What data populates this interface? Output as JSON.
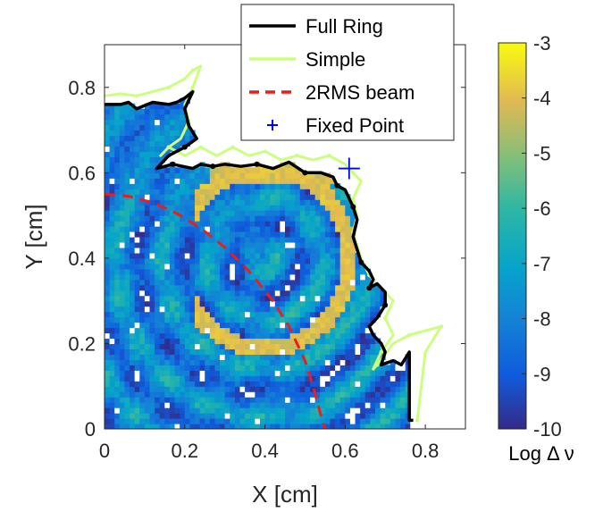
{
  "chart_data": {
    "type": "heatmap",
    "title": "",
    "xlabel": "X [cm]",
    "ylabel": "Y [cm]",
    "xlim": [
      0,
      0.9
    ],
    "ylim": [
      0,
      0.9
    ],
    "xticks": [
      "0",
      "0.2",
      "0.4",
      "0.6",
      "0.8"
    ],
    "yticks": [
      "0",
      "0.2",
      "0.4",
      "0.6",
      "0.8"
    ],
    "colorbar": {
      "label": "Log Δ ν",
      "range": [
        -10,
        -3
      ],
      "ticks": [
        "-3",
        "-4",
        "-5",
        "-6",
        "-7",
        "-8",
        "-9",
        "-10"
      ],
      "colormap": "parula"
    },
    "legend": {
      "placement": "top",
      "entries": [
        "Full Ring",
        "Simple",
        "2RMS beam",
        "Fixed Point"
      ]
    },
    "series": [
      {
        "name": "Full Ring",
        "style": "solid",
        "color": "#000000",
        "x": [
          0.0,
          0.04,
          0.06,
          0.08,
          0.12,
          0.16,
          0.18,
          0.2,
          0.22,
          0.2,
          0.21,
          0.23,
          0.2,
          0.16,
          0.13,
          0.17,
          0.22,
          0.24,
          0.27,
          0.3,
          0.34,
          0.38,
          0.42,
          0.46,
          0.5,
          0.54,
          0.57,
          0.58,
          0.6,
          0.61,
          0.62,
          0.63,
          0.62,
          0.64,
          0.66,
          0.67,
          0.66,
          0.68,
          0.7,
          0.7,
          0.68,
          0.66,
          0.67,
          0.69,
          0.7,
          0.69,
          0.72,
          0.74,
          0.76,
          0.76,
          0.77
        ],
        "y": [
          0.76,
          0.76,
          0.765,
          0.75,
          0.765,
          0.76,
          0.765,
          0.775,
          0.79,
          0.75,
          0.71,
          0.68,
          0.66,
          0.64,
          0.61,
          0.62,
          0.61,
          0.62,
          0.615,
          0.62,
          0.615,
          0.62,
          0.61,
          0.625,
          0.6,
          0.6,
          0.59,
          0.57,
          0.56,
          0.54,
          0.52,
          0.49,
          0.45,
          0.39,
          0.37,
          0.35,
          0.33,
          0.34,
          0.32,
          0.29,
          0.26,
          0.24,
          0.22,
          0.2,
          0.18,
          0.15,
          0.16,
          0.15,
          0.18,
          0.02,
          0.02
        ]
      },
      {
        "name": "Simple",
        "style": "solid",
        "color": "#ccff80",
        "x": [
          0.0,
          0.04,
          0.08,
          0.12,
          0.16,
          0.2,
          0.22,
          0.24,
          0.22,
          0.2,
          0.21,
          0.19,
          0.16,
          0.14,
          0.16,
          0.2,
          0.24,
          0.28,
          0.32,
          0.36,
          0.4,
          0.44,
          0.48,
          0.52,
          0.56,
          0.6,
          0.62,
          0.64,
          0.62,
          0.63,
          0.62,
          0.64,
          0.66,
          0.68,
          0.7,
          0.72,
          0.7,
          0.72,
          0.69,
          0.67,
          0.68,
          0.72,
          0.76,
          0.8,
          0.84,
          0.8,
          0.78
        ],
        "y": [
          0.78,
          0.785,
          0.78,
          0.79,
          0.8,
          0.82,
          0.84,
          0.85,
          0.8,
          0.76,
          0.72,
          0.68,
          0.66,
          0.64,
          0.66,
          0.64,
          0.66,
          0.64,
          0.66,
          0.64,
          0.65,
          0.63,
          0.64,
          0.63,
          0.64,
          0.62,
          0.6,
          0.58,
          0.54,
          0.5,
          0.46,
          0.4,
          0.36,
          0.34,
          0.32,
          0.3,
          0.26,
          0.22,
          0.18,
          0.14,
          0.15,
          0.2,
          0.22,
          0.23,
          0.24,
          0.18,
          0.02
        ]
      },
      {
        "name": "2RMS beam",
        "style": "dashed",
        "color": "#ee1c1c",
        "x": [
          0.0,
          0.06,
          0.12,
          0.18,
          0.24,
          0.3,
          0.36,
          0.42,
          0.46,
          0.5,
          0.52,
          0.54,
          0.55
        ],
        "y": [
          0.55,
          0.545,
          0.53,
          0.505,
          0.47,
          0.425,
          0.37,
          0.3,
          0.24,
          0.16,
          0.1,
          0.03,
          0.0
        ]
      }
    ],
    "fixed_point": {
      "name": "Fixed Point",
      "x": 0.61,
      "y": 0.61,
      "marker": "+",
      "color": "#0000ff"
    }
  }
}
